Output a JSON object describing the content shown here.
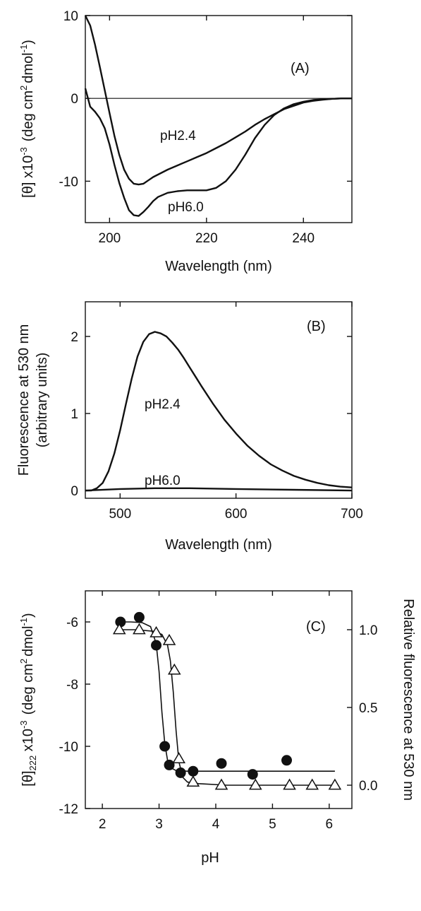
{
  "chart_data": [
    {
      "panel_label": "(A)",
      "type": "line",
      "xlabel": "Wavelength (nm)",
      "ylabel": "[θ] x10",
      "ylabel_exp": "-3",
      "ylabel_units": "(deg cm",
      "ylabel_units_exp1": "2",
      "ylabel_units_mid": "dmol",
      "ylabel_units_exp2": "-1",
      "ylabel_units_end": ")",
      "xlim": [
        195,
        250
      ],
      "ylim": [
        -15,
        10
      ],
      "xticks": [
        200,
        220,
        240
      ],
      "xtick_labels": [
        "200",
        "220",
        "240"
      ],
      "yticks": [
        10,
        0,
        -10
      ],
      "ytick_labels": [
        "10",
        "0",
        "-10"
      ],
      "zero_line": true,
      "series": [
        {
          "name": "pH2.4",
          "x": [
            195,
            196,
            197,
            198,
            199,
            200,
            201,
            202,
            203,
            204,
            205,
            206,
            207,
            208,
            209,
            210,
            212,
            214,
            216,
            218,
            220,
            222,
            224,
            226,
            228,
            230,
            232,
            234,
            236,
            238,
            240,
            242,
            244,
            246,
            248,
            250
          ],
          "y": [
            10,
            8.8,
            6.5,
            3.8,
            1.0,
            -1.8,
            -4.5,
            -6.8,
            -8.6,
            -9.7,
            -10.3,
            -10.4,
            -10.3,
            -9.9,
            -9.5,
            -9.2,
            -8.6,
            -8.1,
            -7.6,
            -7.1,
            -6.6,
            -6.0,
            -5.4,
            -4.7,
            -4.0,
            -3.2,
            -2.5,
            -1.9,
            -1.3,
            -0.9,
            -0.5,
            -0.3,
            -0.15,
            -0.05,
            0,
            0
          ]
        },
        {
          "name": "pH6.0",
          "x": [
            195,
            196,
            197,
            198,
            199,
            200,
            201,
            202,
            203,
            204,
            205,
            206,
            207,
            208,
            209,
            210,
            212,
            214,
            216,
            218,
            220,
            222,
            224,
            226,
            228,
            230,
            232,
            234,
            236,
            238,
            240,
            242,
            244,
            246,
            248,
            250
          ],
          "y": [
            1.2,
            -1.0,
            -1.6,
            -2.4,
            -3.6,
            -5.6,
            -8.0,
            -10.2,
            -12.0,
            -13.5,
            -14.1,
            -14.2,
            -13.7,
            -13.1,
            -12.4,
            -11.9,
            -11.4,
            -11.2,
            -11.1,
            -11.1,
            -11.1,
            -10.8,
            -10.0,
            -8.6,
            -6.8,
            -4.8,
            -3.2,
            -2.0,
            -1.2,
            -0.7,
            -0.4,
            -0.2,
            -0.1,
            -0.05,
            0,
            0
          ]
        }
      ]
    },
    {
      "panel_label": "(B)",
      "type": "line",
      "xlabel": "Wavelength (nm)",
      "ylabel": "Fluorescence at 530 nm",
      "ylabel2": "(arbitrary units)",
      "xlim": [
        470,
        700
      ],
      "ylim": [
        -0.1,
        2.45
      ],
      "xticks": [
        500,
        600,
        700
      ],
      "xtick_labels": [
        "500",
        "600",
        "700"
      ],
      "yticks": [
        0,
        1,
        2
      ],
      "ytick_labels": [
        "0",
        "1",
        "2"
      ],
      "series": [
        {
          "name": "pH2.4",
          "x": [
            470,
            475,
            480,
            485,
            490,
            495,
            500,
            505,
            510,
            515,
            520,
            525,
            530,
            535,
            540,
            545,
            550,
            555,
            560,
            565,
            570,
            580,
            590,
            600,
            610,
            620,
            630,
            640,
            650,
            660,
            670,
            680,
            690,
            700
          ],
          "y": [
            0.0,
            0.0,
            0.03,
            0.1,
            0.25,
            0.48,
            0.78,
            1.12,
            1.45,
            1.74,
            1.93,
            2.03,
            2.06,
            2.04,
            2.0,
            1.92,
            1.83,
            1.72,
            1.6,
            1.48,
            1.36,
            1.13,
            0.92,
            0.74,
            0.58,
            0.45,
            0.34,
            0.26,
            0.19,
            0.14,
            0.1,
            0.07,
            0.05,
            0.04
          ]
        },
        {
          "name": "pH6.0",
          "x": [
            470,
            500,
            530,
            560,
            600,
            650,
            700
          ],
          "y": [
            0.0,
            0.02,
            0.03,
            0.03,
            0.02,
            0.01,
            0.0
          ]
        }
      ]
    },
    {
      "panel_label": "(C)",
      "type": "scatter",
      "xlabel": "pH",
      "ylabel": "[θ]",
      "ylabel_sub": "222",
      "ylabel_mid": " x10",
      "ylabel_exp": "-3",
      "ylabel_units": "(deg cm",
      "ylabel_units_exp1": "2",
      "ylabel_units_mid": "dmol",
      "ylabel_units_exp2": "-1",
      "ylabel_units_end": ")",
      "y2label": "Relative fluorescence at 530 nm",
      "xlim": [
        1.7,
        6.4
      ],
      "ylim": [
        -12,
        -5
      ],
      "y2lim": [
        -0.15,
        1.25
      ],
      "xticks": [
        2,
        3,
        4,
        5,
        6
      ],
      "xtick_labels": [
        "2",
        "3",
        "4",
        "5",
        "6"
      ],
      "yticks": [
        -6,
        -8,
        -10,
        -12
      ],
      "ytick_labels": [
        "-6",
        "-8",
        "-10",
        "-12"
      ],
      "y2ticks": [
        1.0,
        0.5,
        0.0
      ],
      "y2tick_labels": [
        "1.0",
        "0.5",
        "0.0"
      ],
      "series": [
        {
          "marker": "filled-circle",
          "axis": "left",
          "x": [
            2.32,
            2.65,
            2.95,
            3.1,
            3.18,
            3.38,
            3.6,
            4.1,
            4.65,
            5.25
          ],
          "y": [
            -6.0,
            -5.85,
            -6.75,
            -10.0,
            -10.6,
            -10.85,
            -10.8,
            -10.55,
            -10.9,
            -10.45
          ]
        },
        {
          "marker": "open-triangle",
          "axis": "right",
          "x": [
            2.3,
            2.65,
            2.95,
            3.18,
            3.27,
            3.35,
            3.6,
            4.1,
            4.7,
            5.3,
            5.7,
            6.1
          ],
          "y": [
            1.0,
            1.0,
            0.98,
            0.93,
            0.74,
            0.17,
            0.02,
            0.0,
            0.0,
            0.0,
            0.0,
            0.0
          ]
        }
      ],
      "fits": [
        {
          "axis": "left",
          "x": [
            2.25,
            2.5,
            2.7,
            2.85,
            2.95,
            3.0,
            3.05,
            3.1,
            3.15,
            3.22,
            3.3,
            3.5,
            4.0,
            5.0,
            6.1
          ],
          "y": [
            -6.0,
            -6.0,
            -6.02,
            -6.15,
            -6.7,
            -7.6,
            -8.9,
            -9.9,
            -10.45,
            -10.7,
            -10.78,
            -10.8,
            -10.8,
            -10.8,
            -10.8
          ]
        },
        {
          "axis": "right",
          "x": [
            2.25,
            2.6,
            2.9,
            3.05,
            3.15,
            3.2,
            3.25,
            3.3,
            3.35,
            3.42,
            3.5,
            3.7,
            4.2,
            5.2,
            6.1
          ],
          "y": [
            1.0,
            1.0,
            0.99,
            0.97,
            0.9,
            0.8,
            0.6,
            0.35,
            0.15,
            0.05,
            0.02,
            0.01,
            0.0,
            0.0,
            0.0
          ]
        }
      ]
    }
  ],
  "curve_labels": [
    "pH2.4",
    "pH6.0",
    "pH2.4",
    "pH6.0"
  ]
}
